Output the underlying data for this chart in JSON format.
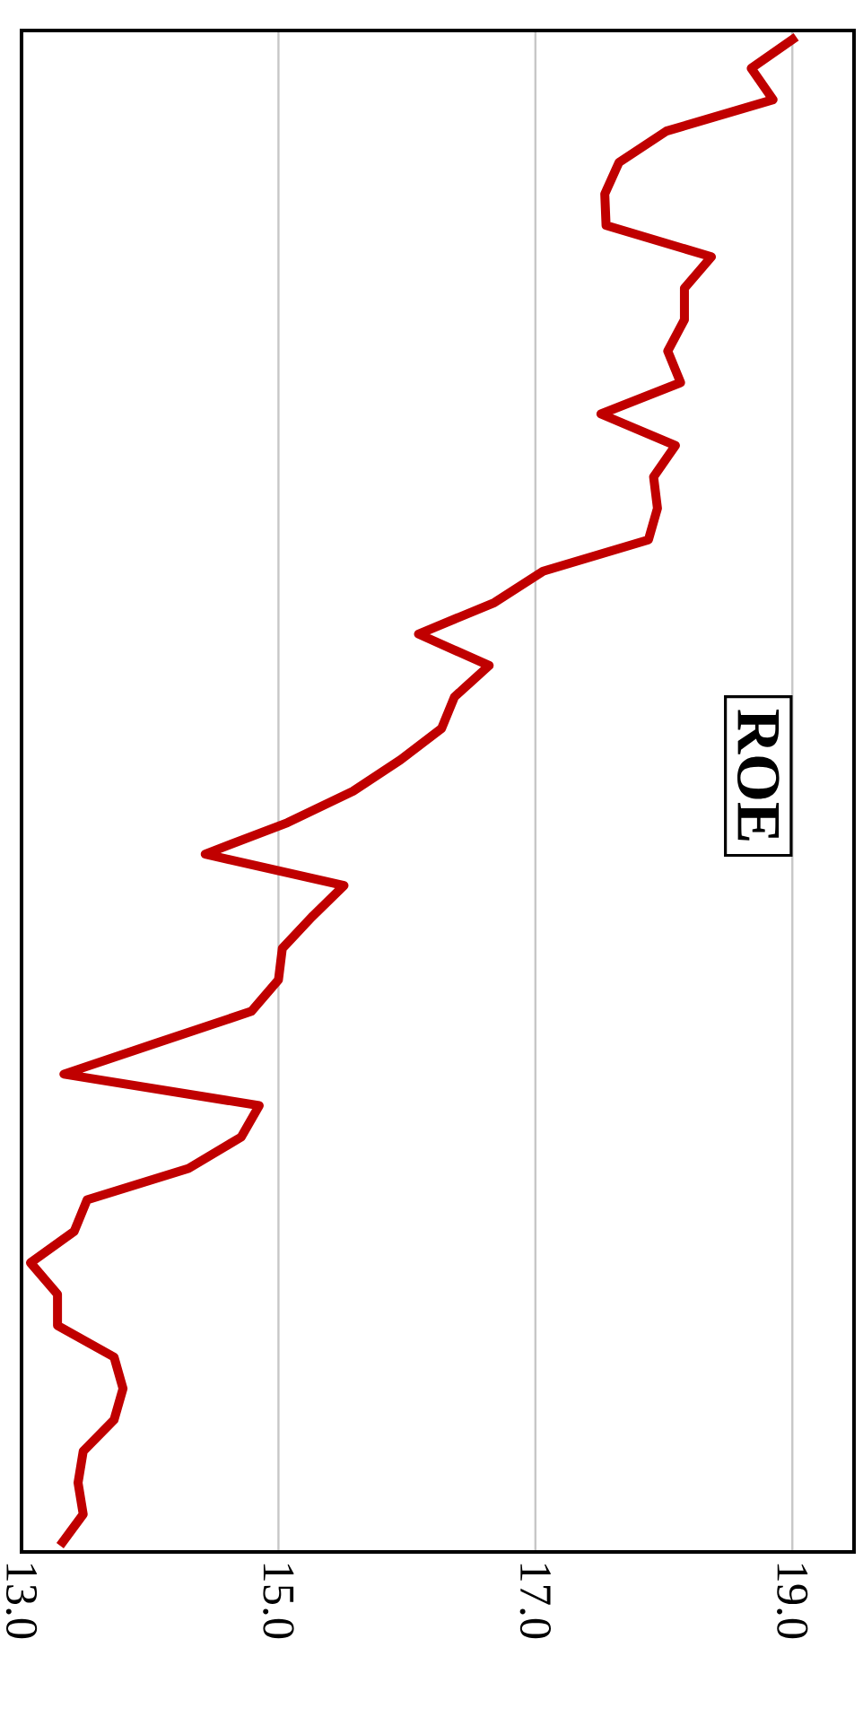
{
  "chart_data": {
    "type": "line",
    "title": "ROE",
    "categories": [
      null,
      null,
      null,
      null,
      null,
      null,
      null,
      null,
      null,
      null,
      null,
      null,
      null,
      null,
      null,
      null,
      null,
      null,
      null,
      null,
      null,
      null,
      null,
      null,
      null,
      null,
      null,
      null,
      null,
      null,
      null,
      null,
      null,
      null,
      null,
      null,
      null,
      null,
      null,
      null,
      null,
      null,
      null,
      null,
      null,
      null,
      null,
      null,
      null
    ],
    "values": [
      19.03,
      18.68,
      18.85,
      18.02,
      17.65,
      17.54,
      17.55,
      18.37,
      18.16,
      18.16,
      18.03,
      18.13,
      17.51,
      18.09,
      17.92,
      17.95,
      17.88,
      17.06,
      16.68,
      16.09,
      16.64,
      16.37,
      16.27,
      15.95,
      15.58,
      15.07,
      14.43,
      15.51,
      15.26,
      15.03,
      15.0,
      14.79,
      14.06,
      13.33,
      14.85,
      14.71,
      14.3,
      13.51,
      13.41,
      13.07,
      13.28,
      13.28,
      13.72,
      13.79,
      13.72,
      13.48,
      13.44,
      13.48,
      13.3
    ],
    "color": "#c00000",
    "orientation": "horizontal",
    "xlim": [
      13.0,
      19.48
    ],
    "xticks": [
      {
        "value": 13,
        "label": "13.0"
      },
      {
        "value": 15,
        "label": "15.0"
      },
      {
        "value": 17,
        "label": "17.0"
      },
      {
        "value": 19,
        "label": "19.0"
      }
    ],
    "grid": "x",
    "tick_labels": "x"
  }
}
